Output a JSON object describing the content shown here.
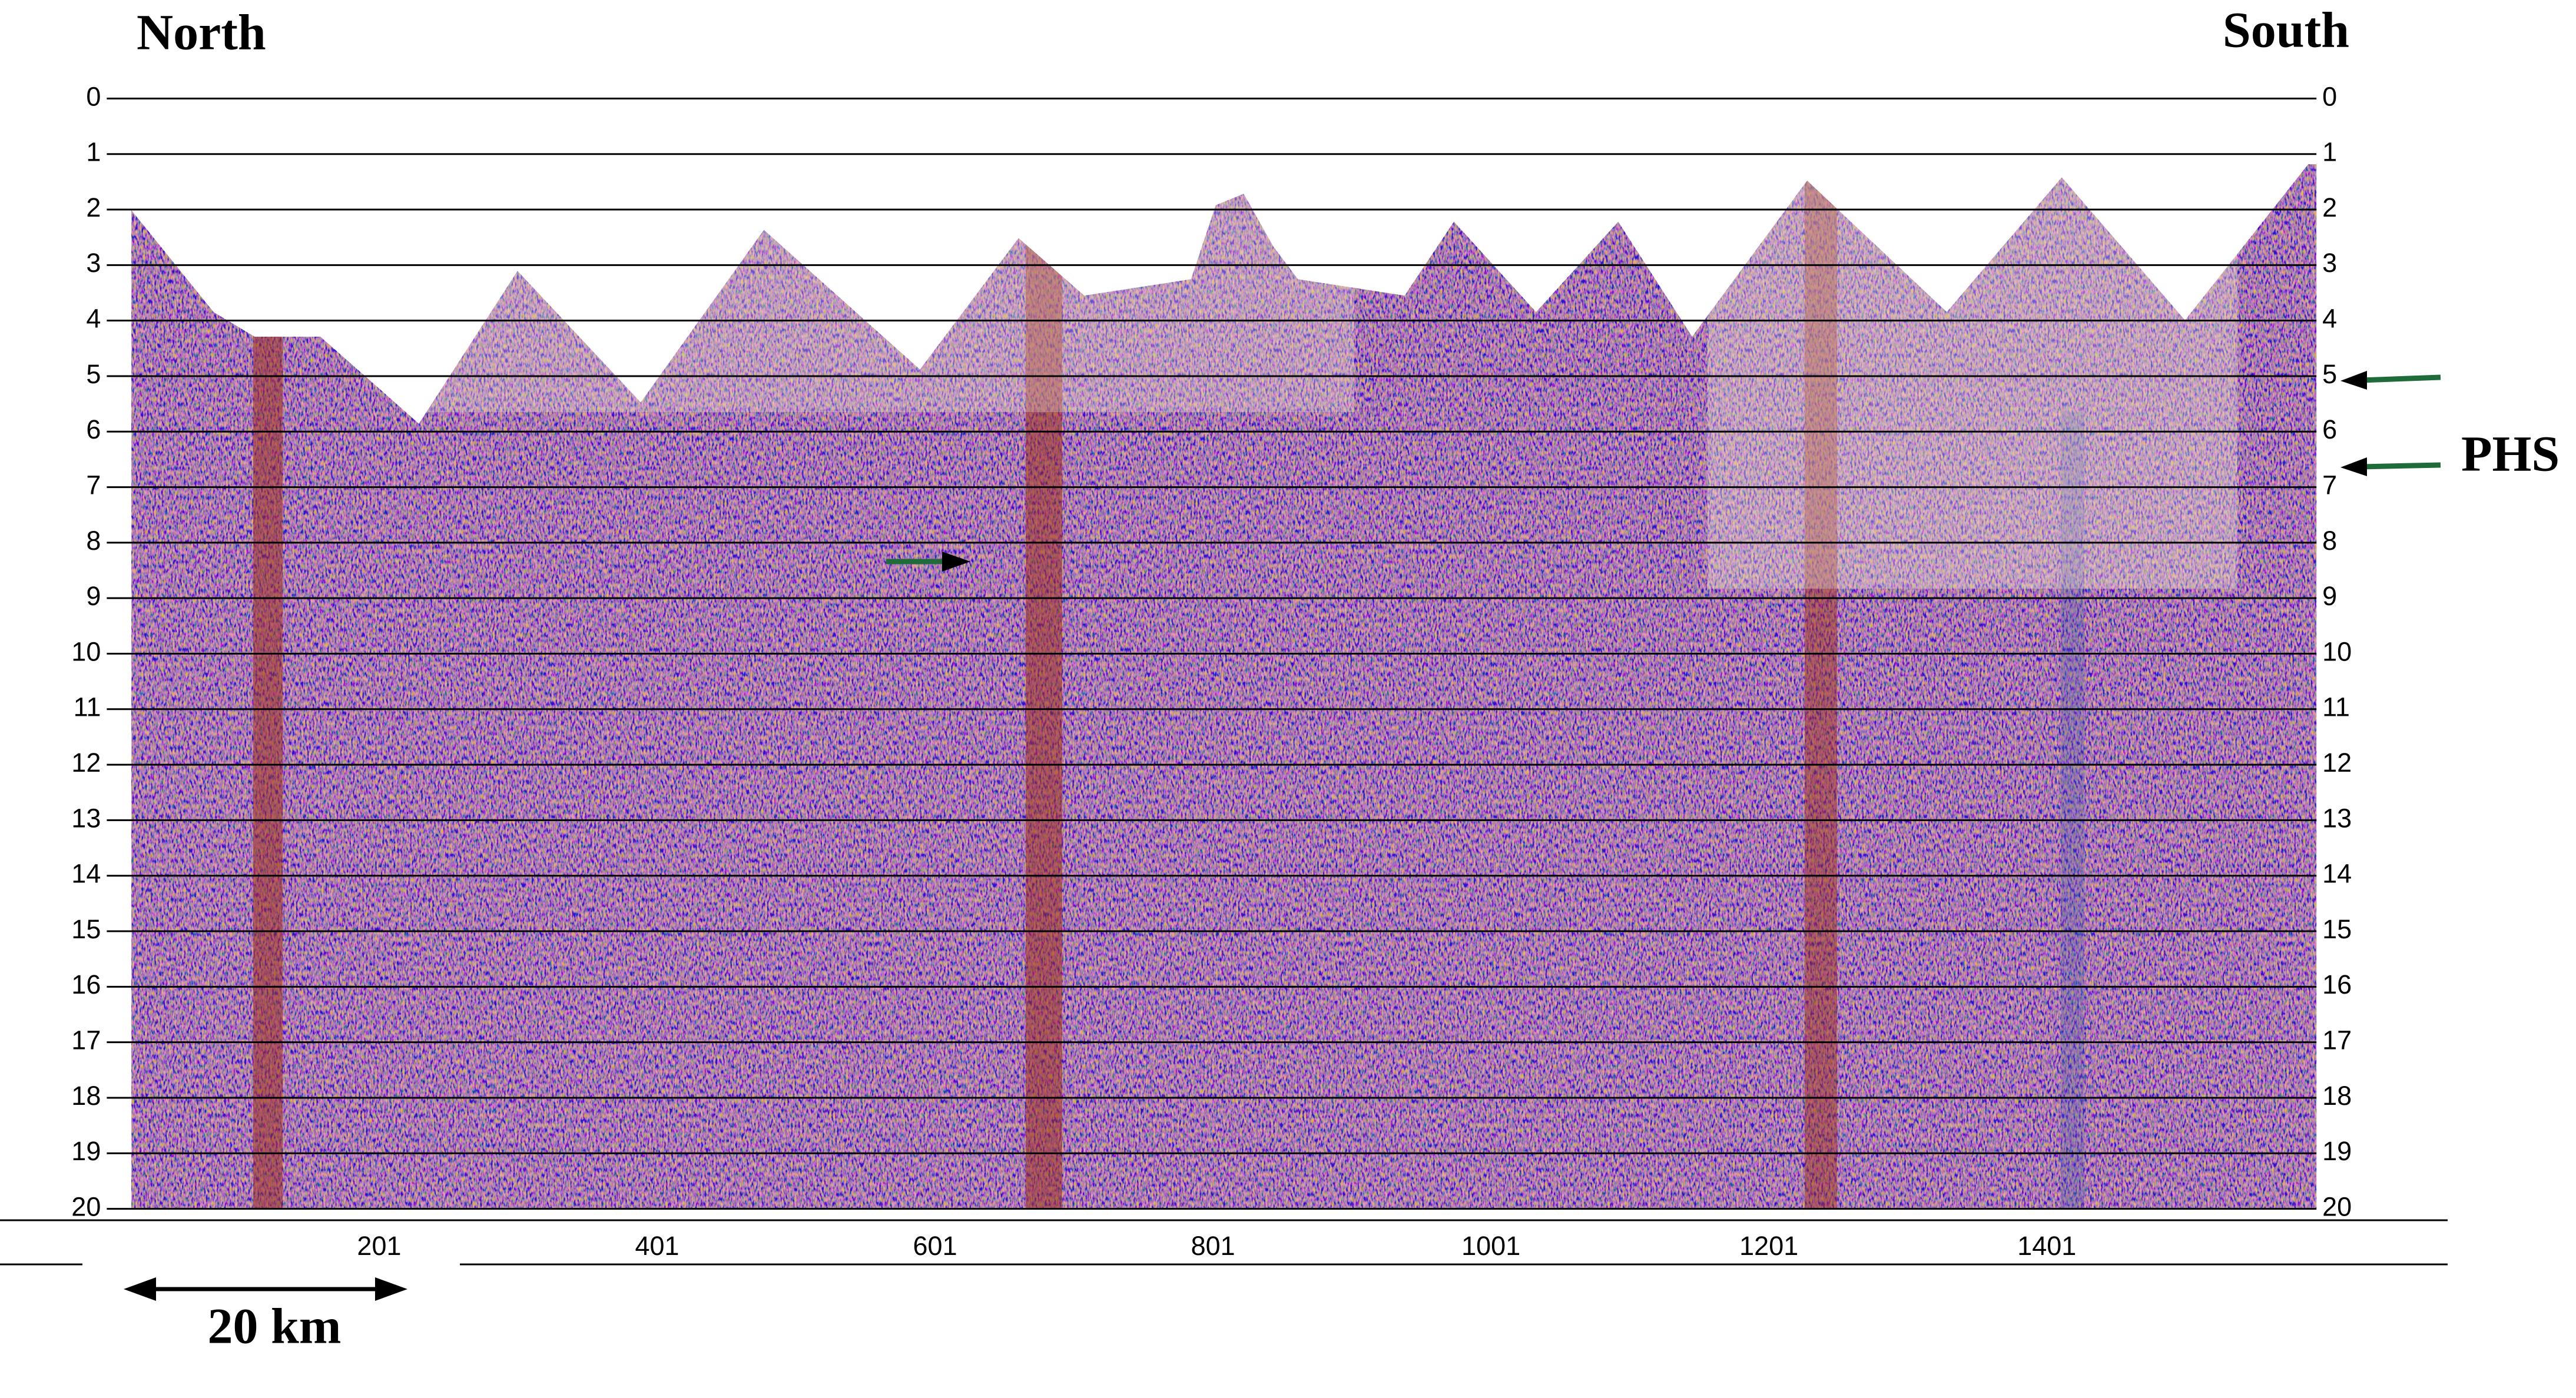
{
  "chart_data": {
    "type": "seismic-section",
    "left_label": "North",
    "right_label": "South",
    "annotation": "PHS",
    "scale_bar": "20 km",
    "ylim": [
      0,
      20
    ],
    "yticks": [
      0,
      1,
      2,
      3,
      4,
      5,
      6,
      7,
      8,
      9,
      10,
      11,
      12,
      13,
      14,
      15,
      16,
      17,
      18,
      19,
      20
    ],
    "xlim": [
      5,
      1595
    ],
    "xticks": [
      201,
      401,
      601,
      801,
      1001,
      1201,
      1401
    ],
    "grid": true,
    "y_reversed": true
  }
}
